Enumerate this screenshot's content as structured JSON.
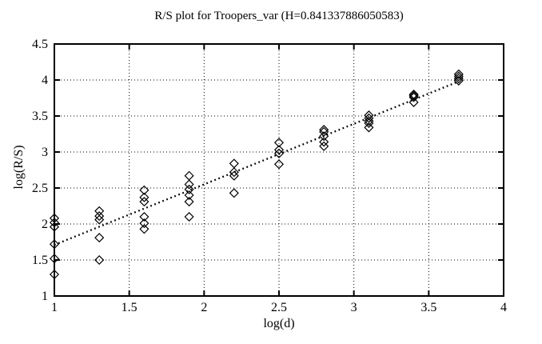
{
  "page": {
    "background": "#ffffff",
    "foreground": "#000000"
  },
  "chart_data": {
    "type": "scatter",
    "title": "R/S plot for Troopers_var (H=0.841337886050583)",
    "hurst_exponent": "0.841337886050583",
    "xlabel": "log(d)",
    "ylabel": "log(R/S)",
    "xlim": [
      1,
      4
    ],
    "ylim": [
      1,
      4.5
    ],
    "xticks": [
      "1",
      "1.5",
      "2",
      "2.5",
      "3",
      "3.5",
      "4"
    ],
    "yticks": [
      "1",
      "1.5",
      "2",
      "2.5",
      "3",
      "3.5",
      "4",
      "4.5"
    ],
    "grid": "dotted",
    "legend": "none",
    "marker": "open-diamond",
    "marker_color": "#000000",
    "series": [
      {
        "x": 1.0,
        "y": [
          2.08,
          2.02,
          1.96,
          1.72,
          1.52,
          1.3
        ]
      },
      {
        "x": 1.3,
        "y": [
          2.18,
          2.11,
          2.06,
          1.81,
          1.5
        ]
      },
      {
        "x": 1.6,
        "y": [
          2.47,
          2.37,
          2.31,
          2.1,
          2.01,
          1.93
        ]
      },
      {
        "x": 1.9,
        "y": [
          2.67,
          2.55,
          2.48,
          2.4,
          2.31,
          2.1
        ]
      },
      {
        "x": 2.2,
        "y": [
          2.84,
          2.72,
          2.67,
          2.43
        ]
      },
      {
        "x": 2.5,
        "y": [
          3.13,
          3.03,
          2.98,
          2.83
        ]
      },
      {
        "x": 2.8,
        "y": [
          3.31,
          3.28,
          3.22,
          3.14,
          3.08
        ]
      },
      {
        "x": 3.1,
        "y": [
          3.51,
          3.47,
          3.43,
          3.4,
          3.34
        ]
      },
      {
        "x": 3.4,
        "y": [
          3.8,
          3.78,
          3.76,
          3.69
        ]
      },
      {
        "x": 3.7,
        "y": [
          4.08,
          4.05,
          4.02,
          3.99
        ]
      }
    ],
    "fit_line": {
      "style": "dotted",
      "x": [
        1.0,
        3.7
      ],
      "y": [
        1.71,
        3.98
      ]
    }
  }
}
